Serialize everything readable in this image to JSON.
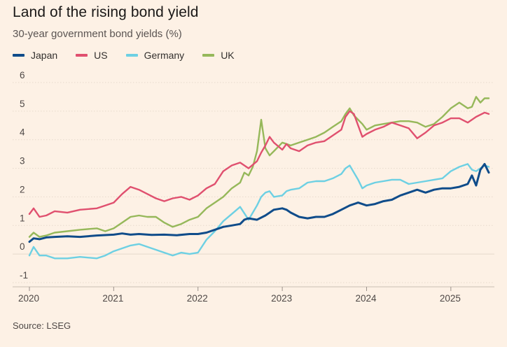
{
  "title": "Land of the rising bond yield",
  "subtitle": "30-year government bond yields (%)",
  "source": "Source: LSEG",
  "chart_data": {
    "type": "line",
    "title": "Land of the rising bond yield",
    "subtitle": "30-year government bond yields (%)",
    "xlabel": "",
    "ylabel": "",
    "ylim": [
      -1,
      6
    ],
    "xlim": [
      2020.0,
      2025.45
    ],
    "yticks": [
      "-1",
      "0",
      "1",
      "2",
      "3",
      "4",
      "5",
      "6"
    ],
    "xticks": [
      "2020",
      "2021",
      "2022",
      "2023",
      "2024",
      "2025"
    ],
    "grid": true,
    "legend": "top-left",
    "series": [
      {
        "name": "Japan",
        "color": "#0f4c8a",
        "x": [
          2020.0,
          2020.05,
          2020.12,
          2020.2,
          2020.3,
          2020.45,
          2020.6,
          2020.8,
          2021.0,
          2021.1,
          2021.2,
          2021.3,
          2021.45,
          2021.6,
          2021.75,
          2021.9,
          2022.0,
          2022.1,
          2022.2,
          2022.3,
          2022.4,
          2022.5,
          2022.55,
          2022.6,
          2022.7,
          2022.8,
          2022.9,
          2023.0,
          2023.05,
          2023.1,
          2023.2,
          2023.3,
          2023.4,
          2023.5,
          2023.6,
          2023.7,
          2023.8,
          2023.9,
          2024.0,
          2024.1,
          2024.2,
          2024.3,
          2024.4,
          2024.5,
          2024.6,
          2024.7,
          2024.8,
          2024.9,
          2025.0,
          2025.1,
          2025.2,
          2025.25,
          2025.3,
          2025.35,
          2025.4,
          2025.45
        ],
        "values": [
          0.43,
          0.55,
          0.52,
          0.58,
          0.6,
          0.62,
          0.6,
          0.65,
          0.68,
          0.72,
          0.68,
          0.7,
          0.67,
          0.68,
          0.66,
          0.7,
          0.7,
          0.75,
          0.85,
          0.95,
          1.0,
          1.05,
          1.2,
          1.25,
          1.2,
          1.35,
          1.55,
          1.6,
          1.55,
          1.45,
          1.3,
          1.25,
          1.3,
          1.3,
          1.4,
          1.55,
          1.7,
          1.8,
          1.7,
          1.75,
          1.85,
          1.9,
          2.05,
          2.15,
          2.25,
          2.15,
          2.25,
          2.3,
          2.3,
          2.35,
          2.45,
          2.75,
          2.4,
          2.95,
          3.15,
          2.85
        ]
      },
      {
        "name": "US",
        "color": "#e0506f",
        "x": [
          2020.0,
          2020.05,
          2020.12,
          2020.2,
          2020.3,
          2020.45,
          2020.6,
          2020.8,
          2020.9,
          2021.0,
          2021.1,
          2021.2,
          2021.3,
          2021.4,
          2021.5,
          2021.6,
          2021.7,
          2021.8,
          2021.9,
          2022.0,
          2022.1,
          2022.2,
          2022.3,
          2022.4,
          2022.5,
          2022.6,
          2022.7,
          2022.75,
          2022.8,
          2022.85,
          2022.9,
          2023.0,
          2023.05,
          2023.1,
          2023.2,
          2023.3,
          2023.4,
          2023.5,
          2023.6,
          2023.7,
          2023.75,
          2023.8,
          2023.85,
          2023.9,
          2023.95,
          2024.0,
          2024.1,
          2024.2,
          2024.3,
          2024.4,
          2024.5,
          2024.6,
          2024.7,
          2024.8,
          2024.9,
          2025.0,
          2025.1,
          2025.2,
          2025.3,
          2025.4,
          2025.45
        ],
        "values": [
          1.4,
          1.6,
          1.3,
          1.35,
          1.5,
          1.45,
          1.55,
          1.6,
          1.7,
          1.8,
          2.1,
          2.35,
          2.25,
          2.1,
          1.95,
          1.85,
          1.95,
          2.0,
          1.9,
          2.05,
          2.3,
          2.45,
          2.9,
          3.1,
          3.2,
          3.0,
          3.25,
          3.55,
          3.8,
          4.1,
          3.9,
          3.65,
          3.85,
          3.7,
          3.6,
          3.8,
          3.9,
          3.95,
          4.15,
          4.35,
          4.8,
          5.0,
          4.9,
          4.5,
          4.1,
          4.2,
          4.35,
          4.45,
          4.6,
          4.5,
          4.4,
          4.05,
          4.25,
          4.5,
          4.6,
          4.75,
          4.75,
          4.6,
          4.8,
          4.95,
          4.9
        ]
      },
      {
        "name": "Germany",
        "color": "#6dd0e3",
        "x": [
          2020.0,
          2020.05,
          2020.12,
          2020.2,
          2020.3,
          2020.45,
          2020.6,
          2020.8,
          2020.9,
          2021.0,
          2021.1,
          2021.2,
          2021.3,
          2021.4,
          2021.5,
          2021.6,
          2021.7,
          2021.8,
          2021.9,
          2022.0,
          2022.1,
          2022.2,
          2022.3,
          2022.4,
          2022.5,
          2022.6,
          2022.7,
          2022.75,
          2022.8,
          2022.85,
          2022.9,
          2023.0,
          2023.05,
          2023.1,
          2023.2,
          2023.3,
          2023.4,
          2023.5,
          2023.6,
          2023.7,
          2023.75,
          2023.8,
          2023.85,
          2023.9,
          2023.95,
          2024.0,
          2024.1,
          2024.2,
          2024.3,
          2024.4,
          2024.5,
          2024.6,
          2024.7,
          2024.8,
          2024.9,
          2025.0,
          2025.1,
          2025.2,
          2025.25,
          2025.3,
          2025.4,
          2025.45
        ],
        "values": [
          -0.05,
          0.25,
          -0.05,
          -0.05,
          -0.15,
          -0.15,
          -0.1,
          -0.15,
          -0.05,
          0.1,
          0.2,
          0.3,
          0.35,
          0.25,
          0.15,
          0.05,
          -0.05,
          0.05,
          0.0,
          0.05,
          0.5,
          0.8,
          1.15,
          1.4,
          1.65,
          1.2,
          1.7,
          2.0,
          2.15,
          2.2,
          2.0,
          2.05,
          2.2,
          2.25,
          2.3,
          2.5,
          2.55,
          2.55,
          2.65,
          2.8,
          3.0,
          3.1,
          2.85,
          2.6,
          2.3,
          2.4,
          2.5,
          2.55,
          2.6,
          2.6,
          2.45,
          2.5,
          2.55,
          2.6,
          2.65,
          2.9,
          3.05,
          3.15,
          2.95,
          2.9,
          3.1,
          3.05
        ]
      },
      {
        "name": "UK",
        "color": "#96b85a",
        "x": [
          2020.0,
          2020.05,
          2020.12,
          2020.2,
          2020.3,
          2020.45,
          2020.6,
          2020.8,
          2020.9,
          2021.0,
          2021.1,
          2021.2,
          2021.3,
          2021.4,
          2021.5,
          2021.6,
          2021.7,
          2021.8,
          2021.9,
          2022.0,
          2022.1,
          2022.2,
          2022.3,
          2022.4,
          2022.5,
          2022.55,
          2022.6,
          2022.65,
          2022.7,
          2022.75,
          2022.8,
          2022.85,
          2022.9,
          2023.0,
          2023.05,
          2023.1,
          2023.2,
          2023.3,
          2023.4,
          2023.5,
          2023.6,
          2023.7,
          2023.75,
          2023.8,
          2023.85,
          2023.9,
          2023.95,
          2024.0,
          2024.1,
          2024.2,
          2024.3,
          2024.4,
          2024.5,
          2024.6,
          2024.7,
          2024.8,
          2024.9,
          2025.0,
          2025.1,
          2025.2,
          2025.25,
          2025.3,
          2025.35,
          2025.4,
          2025.45
        ],
        "values": [
          0.6,
          0.75,
          0.6,
          0.65,
          0.75,
          0.8,
          0.85,
          0.9,
          0.8,
          0.9,
          1.1,
          1.3,
          1.35,
          1.3,
          1.3,
          1.1,
          0.95,
          1.05,
          1.2,
          1.3,
          1.6,
          1.8,
          2.0,
          2.3,
          2.5,
          2.85,
          2.75,
          3.05,
          3.6,
          4.7,
          3.7,
          3.45,
          3.6,
          3.9,
          3.85,
          3.8,
          3.9,
          4.0,
          4.1,
          4.25,
          4.45,
          4.65,
          4.9,
          5.1,
          4.85,
          4.7,
          4.55,
          4.35,
          4.5,
          4.55,
          4.6,
          4.65,
          4.65,
          4.6,
          4.45,
          4.55,
          4.8,
          5.1,
          5.3,
          5.1,
          5.15,
          5.5,
          5.3,
          5.45,
          5.45
        ]
      }
    ]
  }
}
